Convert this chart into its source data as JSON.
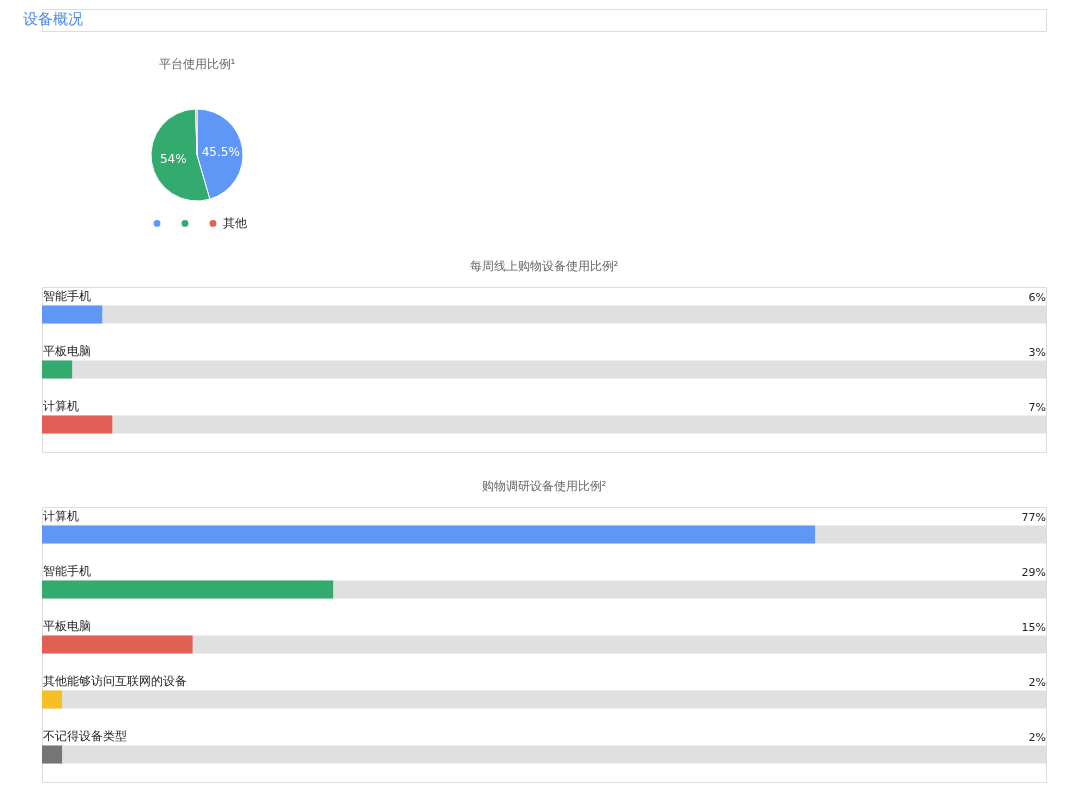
{
  "chart_data": [
    {
      "type": "other",
      "title": "设备概况"
    },
    {
      "type": "pie",
      "title": "平台使用比例¹",
      "categories": [
        null,
        null,
        "其他"
      ],
      "values": [
        45.5,
        54,
        0.5
      ],
      "colors": [
        "#5e97f6",
        "#33ab6e",
        "#e06055"
      ],
      "value_labels": [
        "45.5%",
        "54%",
        null
      ],
      "legend": "bottom"
    },
    {
      "type": "bar",
      "orientation": "horizontal",
      "title": "每周线上购物设备使用比例²",
      "categories": [
        "智能手机",
        "平板电脑",
        "计算机"
      ],
      "values": [
        6,
        3,
        7
      ],
      "colors": [
        "#5e97f6",
        "#33ab6e",
        "#e06055"
      ],
      "value_labels": [
        "6%",
        "3%",
        "7%"
      ],
      "xlim": [
        0,
        100
      ],
      "tick_labels": "y"
    },
    {
      "type": "bar",
      "orientation": "horizontal",
      "title": "购物调研设备使用比例²",
      "categories": [
        "计算机",
        "智能手机",
        "平板电脑",
        "其他能够访问互联网的设备",
        "不记得设备类型"
      ],
      "values": [
        77,
        29,
        15,
        2,
        2
      ],
      "colors": [
        "#5e97f6",
        "#33ab6e",
        "#e06055",
        "#f6bf26",
        "#757575"
      ],
      "value_labels": [
        "77%",
        "29%",
        "15%",
        "2%",
        "2%"
      ],
      "xlim": [
        0,
        100
      ],
      "tick_labels": "y"
    }
  ]
}
